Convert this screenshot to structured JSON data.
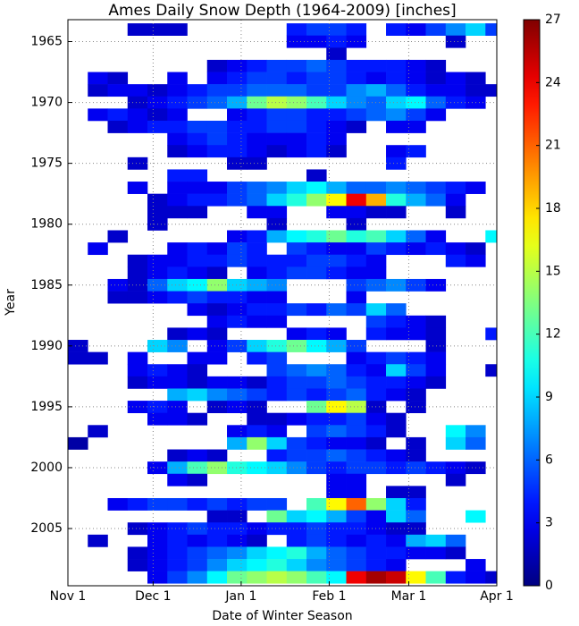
{
  "chart_data": {
    "type": "heatmap",
    "title": "Ames Daily Snow Depth (1964-2009) [inches]",
    "x_label": "Date of Winter Season",
    "y_label": "Year",
    "xlim": [
      0,
      151
    ],
    "xticks": [
      {
        "value": 0,
        "label": "Nov 1"
      },
      {
        "value": 30,
        "label": "Dec 1"
      },
      {
        "value": 61,
        "label": "Jan 1"
      },
      {
        "value": 92,
        "label": "Feb 1"
      },
      {
        "value": 120,
        "label": "Mar 1"
      },
      {
        "value": 151,
        "label": "Apr 1"
      }
    ],
    "ylim": [
      1963.2,
      2009.7
    ],
    "yticks": [
      1965,
      1970,
      1975,
      1980,
      1985,
      1990,
      1995,
      2000,
      2005
    ],
    "grid": true,
    "colormap": "jet",
    "clim": [
      0,
      27
    ],
    "cticks": [
      0,
      3,
      6,
      9,
      12,
      15,
      18,
      21,
      24,
      27
    ],
    "x": [
      0,
      7,
      14,
      21,
      28,
      35,
      42,
      49,
      56,
      63,
      70,
      77,
      84,
      91,
      98,
      105,
      112,
      119,
      126,
      133,
      140,
      147
    ],
    "y": [
      1964,
      1965,
      1966,
      1967,
      1968,
      1969,
      1970,
      1971,
      1972,
      1973,
      1974,
      1975,
      1976,
      1977,
      1978,
      1979,
      1980,
      1981,
      1982,
      1983,
      1984,
      1985,
      1986,
      1987,
      1988,
      1989,
      1990,
      1991,
      1992,
      1993,
      1994,
      1995,
      1996,
      1997,
      1998,
      1999,
      2000,
      2001,
      2002,
      2003,
      2004,
      2005,
      2006,
      2007,
      2008,
      2009
    ],
    "values": [
      [
        null,
        null,
        null,
        2,
        2,
        2,
        null,
        null,
        null,
        null,
        null,
        4,
        5,
        5,
        4,
        null,
        4,
        3,
        5,
        7,
        9,
        5
      ],
      [
        null,
        null,
        null,
        null,
        null,
        null,
        null,
        null,
        null,
        null,
        null,
        3,
        3,
        4,
        3,
        null,
        null,
        null,
        null,
        2,
        null,
        null
      ],
      [
        null,
        null,
        null,
        null,
        null,
        null,
        null,
        null,
        null,
        null,
        null,
        null,
        null,
        2,
        null,
        null,
        null,
        null,
        null,
        null,
        null,
        null
      ],
      [
        null,
        null,
        null,
        null,
        null,
        null,
        null,
        2,
        3,
        4,
        5,
        5,
        6,
        5,
        4,
        4,
        4,
        3,
        2,
        null,
        null,
        null
      ],
      [
        null,
        3,
        2,
        null,
        null,
        3,
        null,
        3,
        4,
        5,
        5,
        4,
        5,
        5,
        4,
        3,
        4,
        3,
        2,
        3,
        2,
        null
      ],
      [
        null,
        2,
        3,
        3,
        2,
        3,
        4,
        5,
        5,
        6,
        6,
        6,
        5,
        5,
        7,
        8,
        6,
        4,
        3,
        3,
        2,
        2
      ],
      [
        null,
        null,
        null,
        2,
        3,
        4,
        5,
        6,
        8,
        13,
        15,
        14,
        12,
        9,
        7,
        6,
        9,
        10,
        6,
        4,
        3,
        null
      ],
      [
        null,
        3,
        4,
        3,
        2,
        3,
        null,
        null,
        3,
        4,
        5,
        5,
        4,
        4,
        5,
        6,
        7,
        5,
        3,
        null,
        null,
        null
      ],
      [
        null,
        null,
        2,
        3,
        4,
        4,
        5,
        5,
        4,
        4,
        5,
        5,
        4,
        3,
        2,
        null,
        3,
        3,
        null,
        null,
        null,
        null
      ],
      [
        null,
        null,
        null,
        null,
        null,
        3,
        4,
        5,
        4,
        3,
        3,
        3,
        4,
        3,
        null,
        null,
        null,
        null,
        null,
        null,
        null,
        null
      ],
      [
        null,
        null,
        null,
        null,
        null,
        2,
        3,
        4,
        4,
        3,
        2,
        3,
        4,
        2,
        null,
        null,
        3,
        4,
        null,
        null,
        null,
        null
      ],
      [
        null,
        null,
        null,
        2,
        null,
        null,
        null,
        null,
        2,
        2,
        null,
        null,
        null,
        null,
        null,
        null,
        4,
        null,
        null,
        null,
        null,
        null
      ],
      [
        null,
        null,
        null,
        null,
        null,
        4,
        4,
        null,
        null,
        null,
        null,
        null,
        2,
        null,
        null,
        null,
        null,
        null,
        null,
        null,
        null,
        null
      ],
      [
        null,
        null,
        null,
        3,
        null,
        3,
        3,
        3,
        5,
        6,
        7,
        9,
        10,
        8,
        6,
        6,
        7,
        6,
        5,
        4,
        3,
        null
      ],
      [
        null,
        null,
        null,
        null,
        2,
        3,
        4,
        4,
        5,
        6,
        9,
        11,
        14,
        17,
        24,
        19,
        11,
        8,
        6,
        3,
        null,
        null
      ],
      [
        null,
        null,
        null,
        null,
        2,
        2,
        2,
        null,
        null,
        3,
        3,
        null,
        null,
        3,
        3,
        2,
        2,
        null,
        null,
        2,
        null,
        null
      ],
      [
        null,
        null,
        null,
        null,
        2,
        null,
        null,
        null,
        null,
        null,
        2,
        null,
        null,
        null,
        2,
        null,
        null,
        null,
        null,
        null,
        null,
        null
      ],
      [
        null,
        null,
        2,
        null,
        null,
        null,
        null,
        null,
        3,
        4,
        8,
        10,
        11,
        13,
        11,
        12,
        9,
        6,
        3,
        null,
        null,
        10
      ],
      [
        null,
        3,
        null,
        null,
        null,
        3,
        4,
        3,
        5,
        4,
        null,
        5,
        4,
        3,
        3,
        5,
        4,
        3,
        4,
        3,
        2,
        null
      ],
      [
        null,
        null,
        null,
        2,
        3,
        3,
        4,
        4,
        5,
        4,
        4,
        4,
        5,
        5,
        4,
        3,
        null,
        null,
        null,
        4,
        3,
        null
      ],
      [
        null,
        null,
        null,
        2,
        3,
        4,
        3,
        2,
        null,
        3,
        4,
        5,
        5,
        4,
        3,
        3,
        null,
        null,
        null,
        null,
        null,
        null
      ],
      [
        null,
        null,
        3,
        2,
        6,
        9,
        10,
        14,
        9,
        8,
        7,
        null,
        null,
        null,
        5,
        6,
        7,
        5,
        3,
        null,
        null,
        null
      ],
      [
        null,
        null,
        2,
        2,
        3,
        4,
        5,
        4,
        4,
        3,
        3,
        null,
        null,
        null,
        3,
        null,
        null,
        null,
        null,
        null,
        null,
        null
      ],
      [
        null,
        null,
        null,
        null,
        null,
        null,
        3,
        2,
        3,
        4,
        4,
        5,
        4,
        6,
        5,
        9,
        6,
        null,
        null,
        null,
        null,
        null
      ],
      [
        null,
        null,
        null,
        null,
        null,
        null,
        null,
        3,
        4,
        3,
        3,
        null,
        null,
        null,
        null,
        5,
        4,
        3,
        2,
        null,
        null,
        null
      ],
      [
        null,
        null,
        null,
        null,
        null,
        2,
        3,
        2,
        null,
        null,
        null,
        3,
        4,
        3,
        null,
        4,
        3,
        3,
        2,
        null,
        null,
        4
      ],
      [
        2,
        null,
        null,
        null,
        9,
        7,
        null,
        3,
        5,
        9,
        11,
        13,
        10,
        8,
        5,
        null,
        null,
        null,
        2,
        null,
        null,
        null
      ],
      [
        2,
        2,
        null,
        3,
        null,
        null,
        3,
        3,
        null,
        4,
        5,
        null,
        null,
        null,
        3,
        4,
        5,
        4,
        3,
        null,
        null,
        null
      ],
      [
        null,
        null,
        null,
        3,
        4,
        3,
        2,
        null,
        null,
        null,
        5,
        6,
        7,
        6,
        4,
        3,
        9,
        5,
        3,
        null,
        null,
        2
      ],
      [
        null,
        null,
        null,
        2,
        3,
        3,
        2,
        3,
        3,
        2,
        4,
        5,
        5,
        6,
        5,
        4,
        4,
        3,
        2,
        null,
        null,
        null
      ],
      [
        null,
        null,
        null,
        null,
        null,
        8,
        9,
        7,
        6,
        5,
        4,
        5,
        4,
        5,
        6,
        4,
        3,
        2,
        null,
        null,
        null,
        null
      ],
      [
        null,
        null,
        null,
        3,
        4,
        3,
        null,
        2,
        3,
        2,
        null,
        null,
        13,
        17,
        15,
        2,
        null,
        2,
        null,
        null,
        null,
        null
      ],
      [
        null,
        null,
        null,
        null,
        3,
        3,
        2,
        null,
        null,
        2,
        2,
        3,
        4,
        4,
        5,
        3,
        2,
        null,
        null,
        null,
        null,
        null
      ],
      [
        null,
        2,
        null,
        null,
        null,
        null,
        null,
        null,
        3,
        4,
        3,
        null,
        5,
        6,
        5,
        4,
        2,
        null,
        null,
        10,
        7,
        null
      ],
      [
        1,
        null,
        null,
        null,
        null,
        null,
        null,
        null,
        8,
        14,
        9,
        5,
        4,
        3,
        3,
        2,
        null,
        2,
        null,
        9,
        6,
        null
      ],
      [
        null,
        null,
        null,
        null,
        null,
        2,
        3,
        2,
        null,
        null,
        4,
        5,
        5,
        6,
        5,
        4,
        3,
        2,
        null,
        null,
        null,
        null
      ],
      [
        null,
        null,
        null,
        null,
        3,
        8,
        12,
        14,
        11,
        10,
        9,
        7,
        5,
        4,
        5,
        5,
        4,
        5,
        4,
        3,
        2,
        null
      ],
      [
        null,
        null,
        null,
        null,
        null,
        3,
        2,
        null,
        null,
        null,
        null,
        null,
        null,
        3,
        3,
        null,
        null,
        null,
        null,
        2,
        null,
        null
      ],
      [
        null,
        null,
        null,
        null,
        null,
        null,
        null,
        null,
        null,
        null,
        null,
        null,
        null,
        3,
        3,
        null,
        2,
        2,
        null,
        null,
        null,
        null
      ],
      [
        null,
        null,
        3,
        4,
        5,
        5,
        4,
        5,
        4,
        5,
        5,
        null,
        12,
        17,
        21,
        14,
        9,
        4,
        null,
        null,
        null,
        null
      ],
      [
        null,
        null,
        null,
        null,
        null,
        null,
        null,
        2,
        2,
        null,
        13,
        9,
        10,
        8,
        5,
        3,
        9,
        6,
        null,
        null,
        10,
        null
      ],
      [
        null,
        null,
        null,
        2,
        3,
        4,
        5,
        4,
        4,
        3,
        4,
        4,
        5,
        4,
        4,
        3,
        2,
        2,
        null,
        null,
        null,
        null
      ],
      [
        null,
        2,
        null,
        null,
        3,
        4,
        3,
        4,
        3,
        2,
        null,
        4,
        5,
        4,
        3,
        4,
        3,
        8,
        9,
        6,
        null,
        null
      ],
      [
        null,
        null,
        null,
        2,
        3,
        4,
        5,
        6,
        7,
        9,
        10,
        11,
        8,
        6,
        5,
        4,
        4,
        3,
        3,
        2,
        null,
        null
      ],
      [
        null,
        null,
        null,
        2,
        3,
        4,
        5,
        7,
        9,
        10,
        11,
        9,
        7,
        6,
        5,
        4,
        3,
        null,
        null,
        null,
        3,
        null
      ],
      [
        null,
        null,
        null,
        null,
        3,
        5,
        7,
        10,
        13,
        14,
        15,
        14,
        12,
        10,
        24,
        26,
        25,
        17,
        12,
        4,
        3,
        2
      ]
    ]
  }
}
